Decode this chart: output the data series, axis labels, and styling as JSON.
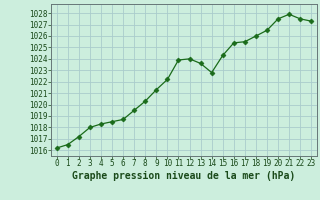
{
  "x": [
    0,
    1,
    2,
    3,
    4,
    5,
    6,
    7,
    8,
    9,
    10,
    11,
    12,
    13,
    14,
    15,
    16,
    17,
    18,
    19,
    20,
    21,
    22,
    23
  ],
  "y": [
    1016.2,
    1016.5,
    1017.2,
    1018.0,
    1018.3,
    1018.5,
    1018.7,
    1019.5,
    1020.3,
    1021.3,
    1022.2,
    1023.9,
    1024.0,
    1023.6,
    1022.8,
    1024.3,
    1025.4,
    1025.5,
    1026.0,
    1026.5,
    1027.5,
    1027.9,
    1027.5,
    1027.3
  ],
  "line_color": "#1a6b1a",
  "marker_color": "#1a6b1a",
  "bg_color": "#cceedd",
  "grid_color": "#aacccc",
  "xlabel": "Graphe pression niveau de la mer (hPa)",
  "ylim_min": 1015.5,
  "ylim_max": 1028.8,
  "xlim_min": -0.5,
  "xlim_max": 23.5,
  "yticks": [
    1016,
    1017,
    1018,
    1019,
    1020,
    1021,
    1022,
    1023,
    1024,
    1025,
    1026,
    1027,
    1028
  ],
  "xticks": [
    0,
    1,
    2,
    3,
    4,
    5,
    6,
    7,
    8,
    9,
    10,
    11,
    12,
    13,
    14,
    15,
    16,
    17,
    18,
    19,
    20,
    21,
    22,
    23
  ],
  "xlabel_fontsize": 7.0,
  "tick_fontsize": 5.5,
  "marker_size": 2.5,
  "line_width": 0.9
}
